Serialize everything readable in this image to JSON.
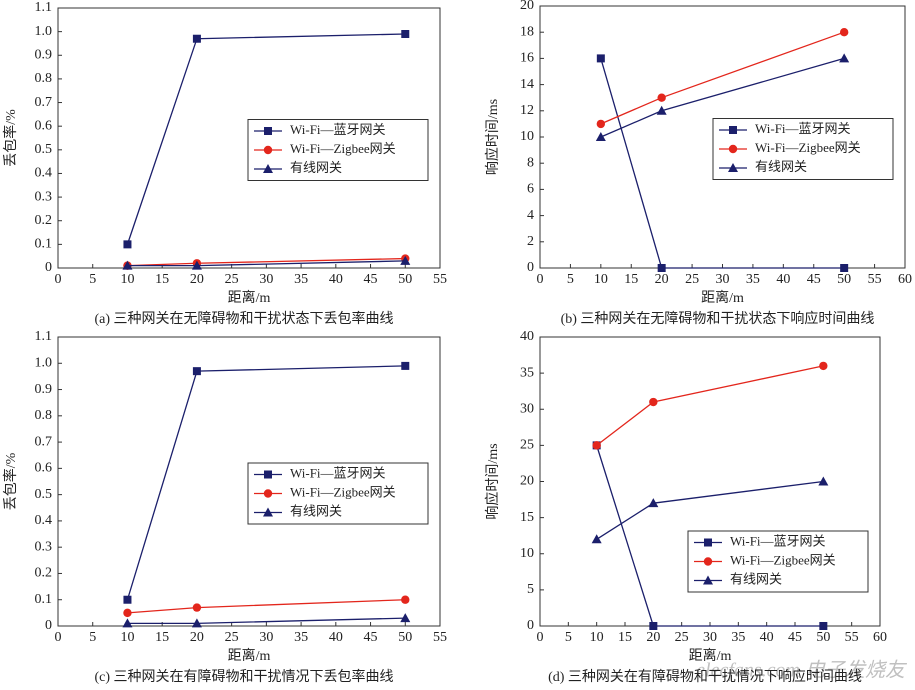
{
  "chart_data": [
    {
      "type": "line",
      "caption": "(a) 三种网关在无障碍物和干扰状态下丢包率曲线",
      "x_label": "距离/m",
      "y_label": "丢包率/%",
      "x": [
        10,
        20,
        50
      ],
      "series": [
        {
          "name": "Wi-Fi—蓝牙网关",
          "color": "#1b1f6b",
          "marker": "square",
          "values": [
            0.1,
            0.97,
            0.99
          ]
        },
        {
          "name": "Wi-Fi—Zigbee网关",
          "color": "#e3261c",
          "marker": "circle",
          "values": [
            0.01,
            0.02,
            0.04
          ]
        },
        {
          "name": "有线网关",
          "color": "#1b1f6b",
          "marker": "triangle",
          "values": [
            0.01,
            0.01,
            0.03
          ]
        }
      ],
      "xlim": [
        0,
        55
      ],
      "xticks": [
        0,
        5,
        10,
        15,
        20,
        25,
        30,
        35,
        40,
        45,
        50,
        55
      ],
      "ylim": [
        0,
        1.1
      ],
      "yticks": [
        0,
        0.1,
        0.2,
        0.3,
        0.4,
        0.5,
        0.6,
        0.7,
        0.8,
        0.9,
        {
          "value": 1,
          "label": "1.0"
        },
        1.1
      ],
      "legend": "center right"
    },
    {
      "type": "line",
      "caption": "(b) 三种网关在无障碍物和干扰状态下响应时间曲线",
      "x_label": "距离/m",
      "y_label": "响应时间/ms",
      "x": [
        10,
        20,
        50
      ],
      "series": [
        {
          "name": "Wi-Fi—蓝牙网关",
          "color": "#1b1f6b",
          "marker": "square",
          "values": [
            16,
            0,
            0
          ]
        },
        {
          "name": "Wi-Fi—Zigbee网关",
          "color": "#e3261c",
          "marker": "circle",
          "values": [
            11,
            13,
            18
          ]
        },
        {
          "name": "有线网关",
          "color": "#1b1f6b",
          "marker": "triangle",
          "values": [
            10,
            12,
            16
          ]
        }
      ],
      "xlim": [
        0,
        60
      ],
      "xticks": [
        0,
        5,
        10,
        15,
        20,
        25,
        30,
        35,
        40,
        45,
        50,
        55,
        60
      ],
      "ylim": [
        0,
        20
      ],
      "yticks": [
        0,
        2,
        4,
        6,
        8,
        10,
        12,
        14,
        16,
        18,
        20
      ],
      "legend": "center right"
    },
    {
      "type": "line",
      "caption": "(c) 三种网关在有障碍物和干扰情况下丢包率曲线",
      "x_label": "距离/m",
      "y_label": "丢包率/%",
      "x": [
        10,
        20,
        50
      ],
      "series": [
        {
          "name": "Wi-Fi—蓝牙网关",
          "color": "#1b1f6b",
          "marker": "square",
          "values": [
            0.1,
            0.97,
            0.99
          ]
        },
        {
          "name": "Wi-Fi—Zigbee网关",
          "color": "#e3261c",
          "marker": "circle",
          "values": [
            0.05,
            0.07,
            0.1
          ]
        },
        {
          "name": "有线网关",
          "color": "#1b1f6b",
          "marker": "triangle",
          "values": [
            0.01,
            0.01,
            0.03
          ]
        }
      ],
      "xlim": [
        0,
        55
      ],
      "xticks": [
        0,
        5,
        10,
        15,
        20,
        25,
        30,
        35,
        40,
        45,
        50,
        55
      ],
      "ylim": [
        0,
        1.1
      ],
      "yticks": [
        0,
        0.1,
        0.2,
        0.3,
        0.4,
        0.5,
        0.6,
        0.7,
        0.8,
        0.9,
        {
          "value": 1,
          "label": "1.0"
        },
        1.1
      ],
      "legend": "center right"
    },
    {
      "type": "line",
      "caption": "(d) 三种网关在有障碍物和干扰情况下响应时间曲线",
      "x_label": "距离/m",
      "y_label": "响应时间/ms",
      "x": [
        10,
        20,
        50
      ],
      "series": [
        {
          "name": "Wi-Fi—蓝牙网关",
          "color": "#1b1f6b",
          "marker": "square",
          "values": [
            25,
            0,
            0
          ]
        },
        {
          "name": "Wi-Fi—Zigbee网关",
          "color": "#e3261c",
          "marker": "circle",
          "values": [
            25,
            31,
            36
          ]
        },
        {
          "name": "有线网关",
          "color": "#1b1f6b",
          "marker": "triangle",
          "values": [
            12,
            17,
            20
          ]
        }
      ],
      "xlim": [
        0,
        60
      ],
      "xticks": [
        0,
        5,
        10,
        15,
        20,
        25,
        30,
        35,
        40,
        45,
        50,
        55,
        60
      ],
      "ylim": [
        0,
        40
      ],
      "yticks": [
        0,
        5,
        10,
        15,
        20,
        25,
        30,
        35,
        40
      ],
      "legend": "lower right"
    }
  ],
  "watermark": "elecfans.com 电子发烧友"
}
